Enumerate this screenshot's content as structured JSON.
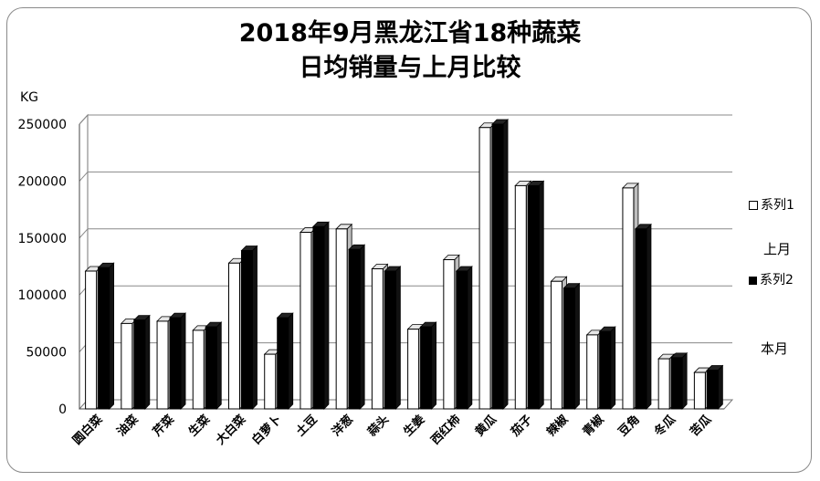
{
  "chart_data": {
    "type": "bar",
    "title_line1": "2018年9月黑龙江省18种蔬菜",
    "title_line2": "日均销量与上月比较",
    "ylabel": "KG",
    "ylim": [
      0,
      250000
    ],
    "yticks": [
      0,
      50000,
      100000,
      150000,
      200000,
      250000
    ],
    "ytick_labels": [
      "0",
      "50000",
      "100000",
      "150000",
      "200000",
      "250000"
    ],
    "grid": true,
    "legend_position": "right",
    "categories": [
      "圆白菜",
      "油菜",
      "芹菜",
      "生菜",
      "大白菜",
      "白萝卜",
      "土豆",
      "洋葱",
      "蒜头",
      "生姜",
      "西红柿",
      "黄瓜",
      "茄子",
      "辣椒",
      "青椒",
      "豆角",
      "冬瓜",
      "苦瓜"
    ],
    "series": [
      {
        "name": "系列1",
        "annotation": "上月",
        "color": "#ffffff",
        "values": [
          121000,
          75000,
          77000,
          69000,
          128000,
          48000,
          155000,
          158000,
          123000,
          70000,
          131000,
          247000,
          196000,
          112000,
          65000,
          194000,
          44000,
          32000
        ]
      },
      {
        "name": "系列2",
        "annotation": "本月",
        "color": "#000000",
        "values": [
          124000,
          78000,
          80000,
          72000,
          139000,
          80000,
          160000,
          140000,
          121000,
          72000,
          121000,
          250000,
          196000,
          106000,
          68000,
          158000,
          45000,
          34000
        ]
      }
    ]
  }
}
